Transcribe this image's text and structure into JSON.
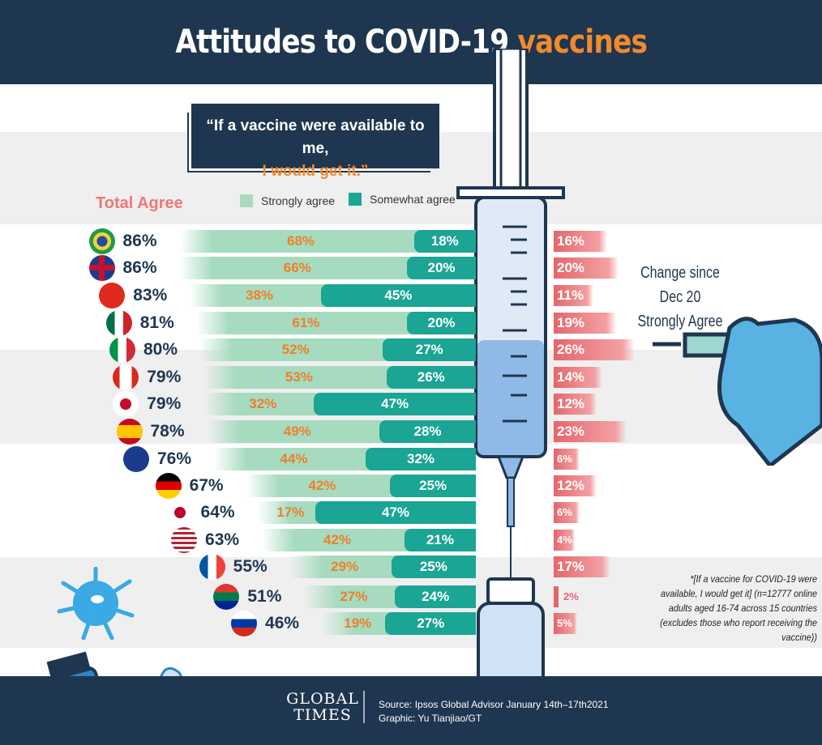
{
  "title": {
    "main": "Attitudes to COVID-19 ",
    "accent": "vaccines"
  },
  "quote": {
    "line1": "“If a vaccine were available to me,",
    "line2": "I would get it.”"
  },
  "legend": {
    "total": "Total Agree",
    "strong": "Strongly agree",
    "somewhat": "Somewhat agree"
  },
  "change_heading": {
    "line1": "Change since Dec 20",
    "line2": "Strongly Agree"
  },
  "footnote": "*[If a vaccine for COVID-19 were available, I would get it] (n=12777 online adults aged 16-74 across 15 countries (excludes those who report receiving the vaccine))",
  "footer": {
    "logo": "GLOBAL TIMES",
    "source": "Source: Ipsos Global Advisor January 14th–17th2021",
    "graphic": "Graphic: Yu Tianjiao/GT"
  },
  "colors": {
    "strong": "#a6dbbf",
    "somewhat": "#1aa594",
    "change": "#e4666b",
    "navy": "#1f3650",
    "orange": "#f08a2c"
  },
  "chart_data": {
    "type": "bar",
    "title": "Attitudes to COVID-19 vaccines",
    "categories": [
      "Brazil",
      "UK",
      "China",
      "Mexico",
      "Italy",
      "Canada",
      "South Korea",
      "Spain",
      "Australia",
      "Germany",
      "Japan",
      "USA",
      "France",
      "South Africa",
      "Russia"
    ],
    "flags": [
      "flag-brazil",
      "flag-uk",
      "flag-china",
      "flag-mexico",
      "flag-italy",
      "flag-canada",
      "flag-south-korea",
      "flag-spain",
      "flag-australia",
      "flag-germany",
      "flag-japan",
      "flag-usa",
      "flag-france",
      "flag-south-africa",
      "flag-russia"
    ],
    "total_agree": [
      86,
      86,
      83,
      81,
      80,
      79,
      79,
      78,
      76,
      67,
      64,
      63,
      55,
      51,
      46
    ],
    "series": [
      {
        "name": "Strongly agree",
        "values": [
          68,
          66,
          38,
          61,
          52,
          53,
          32,
          49,
          44,
          42,
          17,
          42,
          29,
          27,
          19
        ]
      },
      {
        "name": "Somewhat agree",
        "values": [
          18,
          20,
          45,
          20,
          27,
          26,
          47,
          28,
          32,
          25,
          47,
          21,
          25,
          24,
          27
        ]
      },
      {
        "name": "Change since Dec 20 Strongly Agree",
        "values": [
          16,
          20,
          11,
          19,
          26,
          14,
          12,
          23,
          6,
          12,
          6,
          4,
          17,
          2,
          5
        ]
      }
    ],
    "unit": "%"
  }
}
